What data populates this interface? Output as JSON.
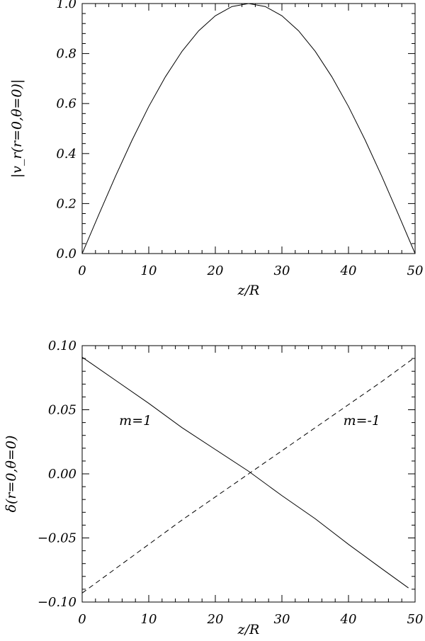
{
  "chart_data": [
    {
      "type": "line",
      "xlabel": "z/R",
      "ylabel": "|v_r(r=0,θ=0)|",
      "xlim": [
        0,
        50
      ],
      "ylim": [
        0.0,
        1.0
      ],
      "xticks": [
        "0",
        "10",
        "20",
        "30",
        "40",
        "50"
      ],
      "yticks": [
        "0.0",
        "0.2",
        "0.4",
        "0.6",
        "0.8",
        "1.0"
      ],
      "series": [
        {
          "style": "solid",
          "x": [
            0,
            2.5,
            5,
            7.5,
            10,
            12.5,
            15,
            17.5,
            20,
            22.5,
            25,
            27.5,
            30,
            32.5,
            35,
            37.5,
            40,
            42.5,
            45,
            47.5,
            50
          ],
          "y": [
            0.0,
            0.156,
            0.309,
            0.454,
            0.588,
            0.707,
            0.809,
            0.891,
            0.951,
            0.988,
            1.0,
            0.988,
            0.951,
            0.891,
            0.809,
            0.707,
            0.588,
            0.454,
            0.309,
            0.156,
            0.0
          ]
        }
      ]
    },
    {
      "type": "line",
      "xlabel": "z/R",
      "ylabel": "δ(r=0,θ=0)",
      "xlim": [
        0,
        50
      ],
      "ylim": [
        -0.1,
        0.1
      ],
      "xticks": [
        "0",
        "10",
        "20",
        "30",
        "40",
        "50"
      ],
      "yticks": [
        "-0.10",
        "-0.05",
        "0.00",
        "0.05",
        "0.10"
      ],
      "annotations": [
        {
          "text": "m=1",
          "x": 8,
          "y": 0.038
        },
        {
          "text": "m=-1",
          "x": 42,
          "y": 0.038
        }
      ],
      "series": [
        {
          "name": "m=1",
          "style": "solid",
          "x": [
            0,
            5,
            10,
            15,
            20,
            25,
            30,
            35,
            40,
            45,
            49
          ],
          "y": [
            0.091,
            0.073,
            0.055,
            0.036,
            0.019,
            0.002,
            -0.017,
            -0.035,
            -0.055,
            -0.074,
            -0.089
          ]
        },
        {
          "name": "m=-1",
          "style": "dashed",
          "x": [
            0,
            5,
            10,
            15,
            20,
            25,
            30,
            35,
            40,
            45,
            50
          ],
          "y": [
            -0.093,
            -0.074,
            -0.055,
            -0.036,
            -0.018,
            0.0,
            0.018,
            0.036,
            0.054,
            0.072,
            0.091
          ]
        }
      ]
    }
  ]
}
